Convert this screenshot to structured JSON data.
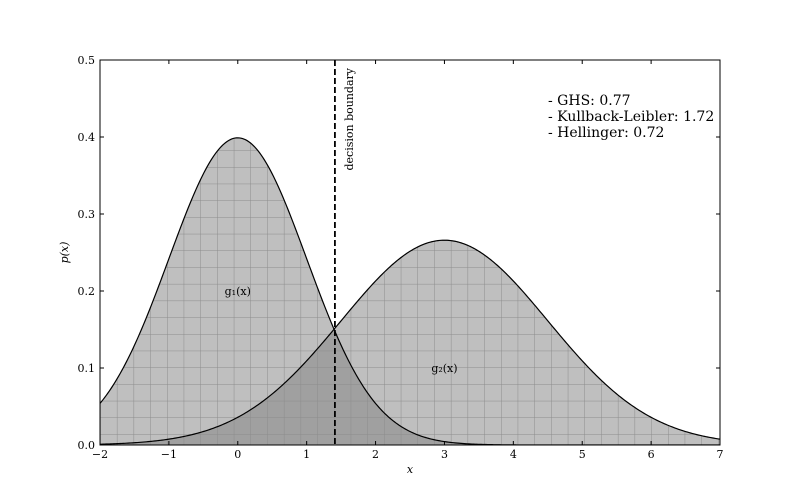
{
  "chart_data": {
    "type": "area",
    "title": "",
    "xlabel": "x",
    "ylabel": "p(x)",
    "xlim": [
      -2,
      7
    ],
    "ylim": [
      0,
      0.5
    ],
    "xticks": [
      -2,
      -1,
      0,
      1,
      2,
      3,
      4,
      5,
      6,
      7
    ],
    "yticks": [
      0.0,
      0.1,
      0.2,
      0.3,
      0.4,
      0.5
    ],
    "xtick_labels": [
      "−2",
      "−1",
      "0",
      "1",
      "2",
      "3",
      "4",
      "5",
      "6",
      "7"
    ],
    "ytick_labels": [
      "0.0",
      "0.1",
      "0.2",
      "0.3",
      "0.4",
      "0.5"
    ],
    "grid": false,
    "series": [
      {
        "name": "g₁(x)",
        "distribution": "normal",
        "mean": 0,
        "std": 1,
        "peak": 0.3989,
        "label_at": [
          0,
          0.2
        ],
        "fill_color": "#bfbfbf",
        "hatch": "grid"
      },
      {
        "name": "g₂(x)",
        "distribution": "normal",
        "mean": 3,
        "std": 1.5,
        "peak": 0.266,
        "label_at": [
          3,
          0.1
        ],
        "fill_color": "#bfbfbf",
        "hatch": "grid"
      }
    ],
    "overlap_fill_color": "#a0a0a0",
    "decision_boundary": {
      "x": 1.41,
      "label": "decision boundary",
      "style": "dashed"
    },
    "annotation_lines": [
      "- GHS: 0.77",
      "- Kullback-Leibler: 1.72",
      "- Hellinger: 0.72"
    ]
  }
}
